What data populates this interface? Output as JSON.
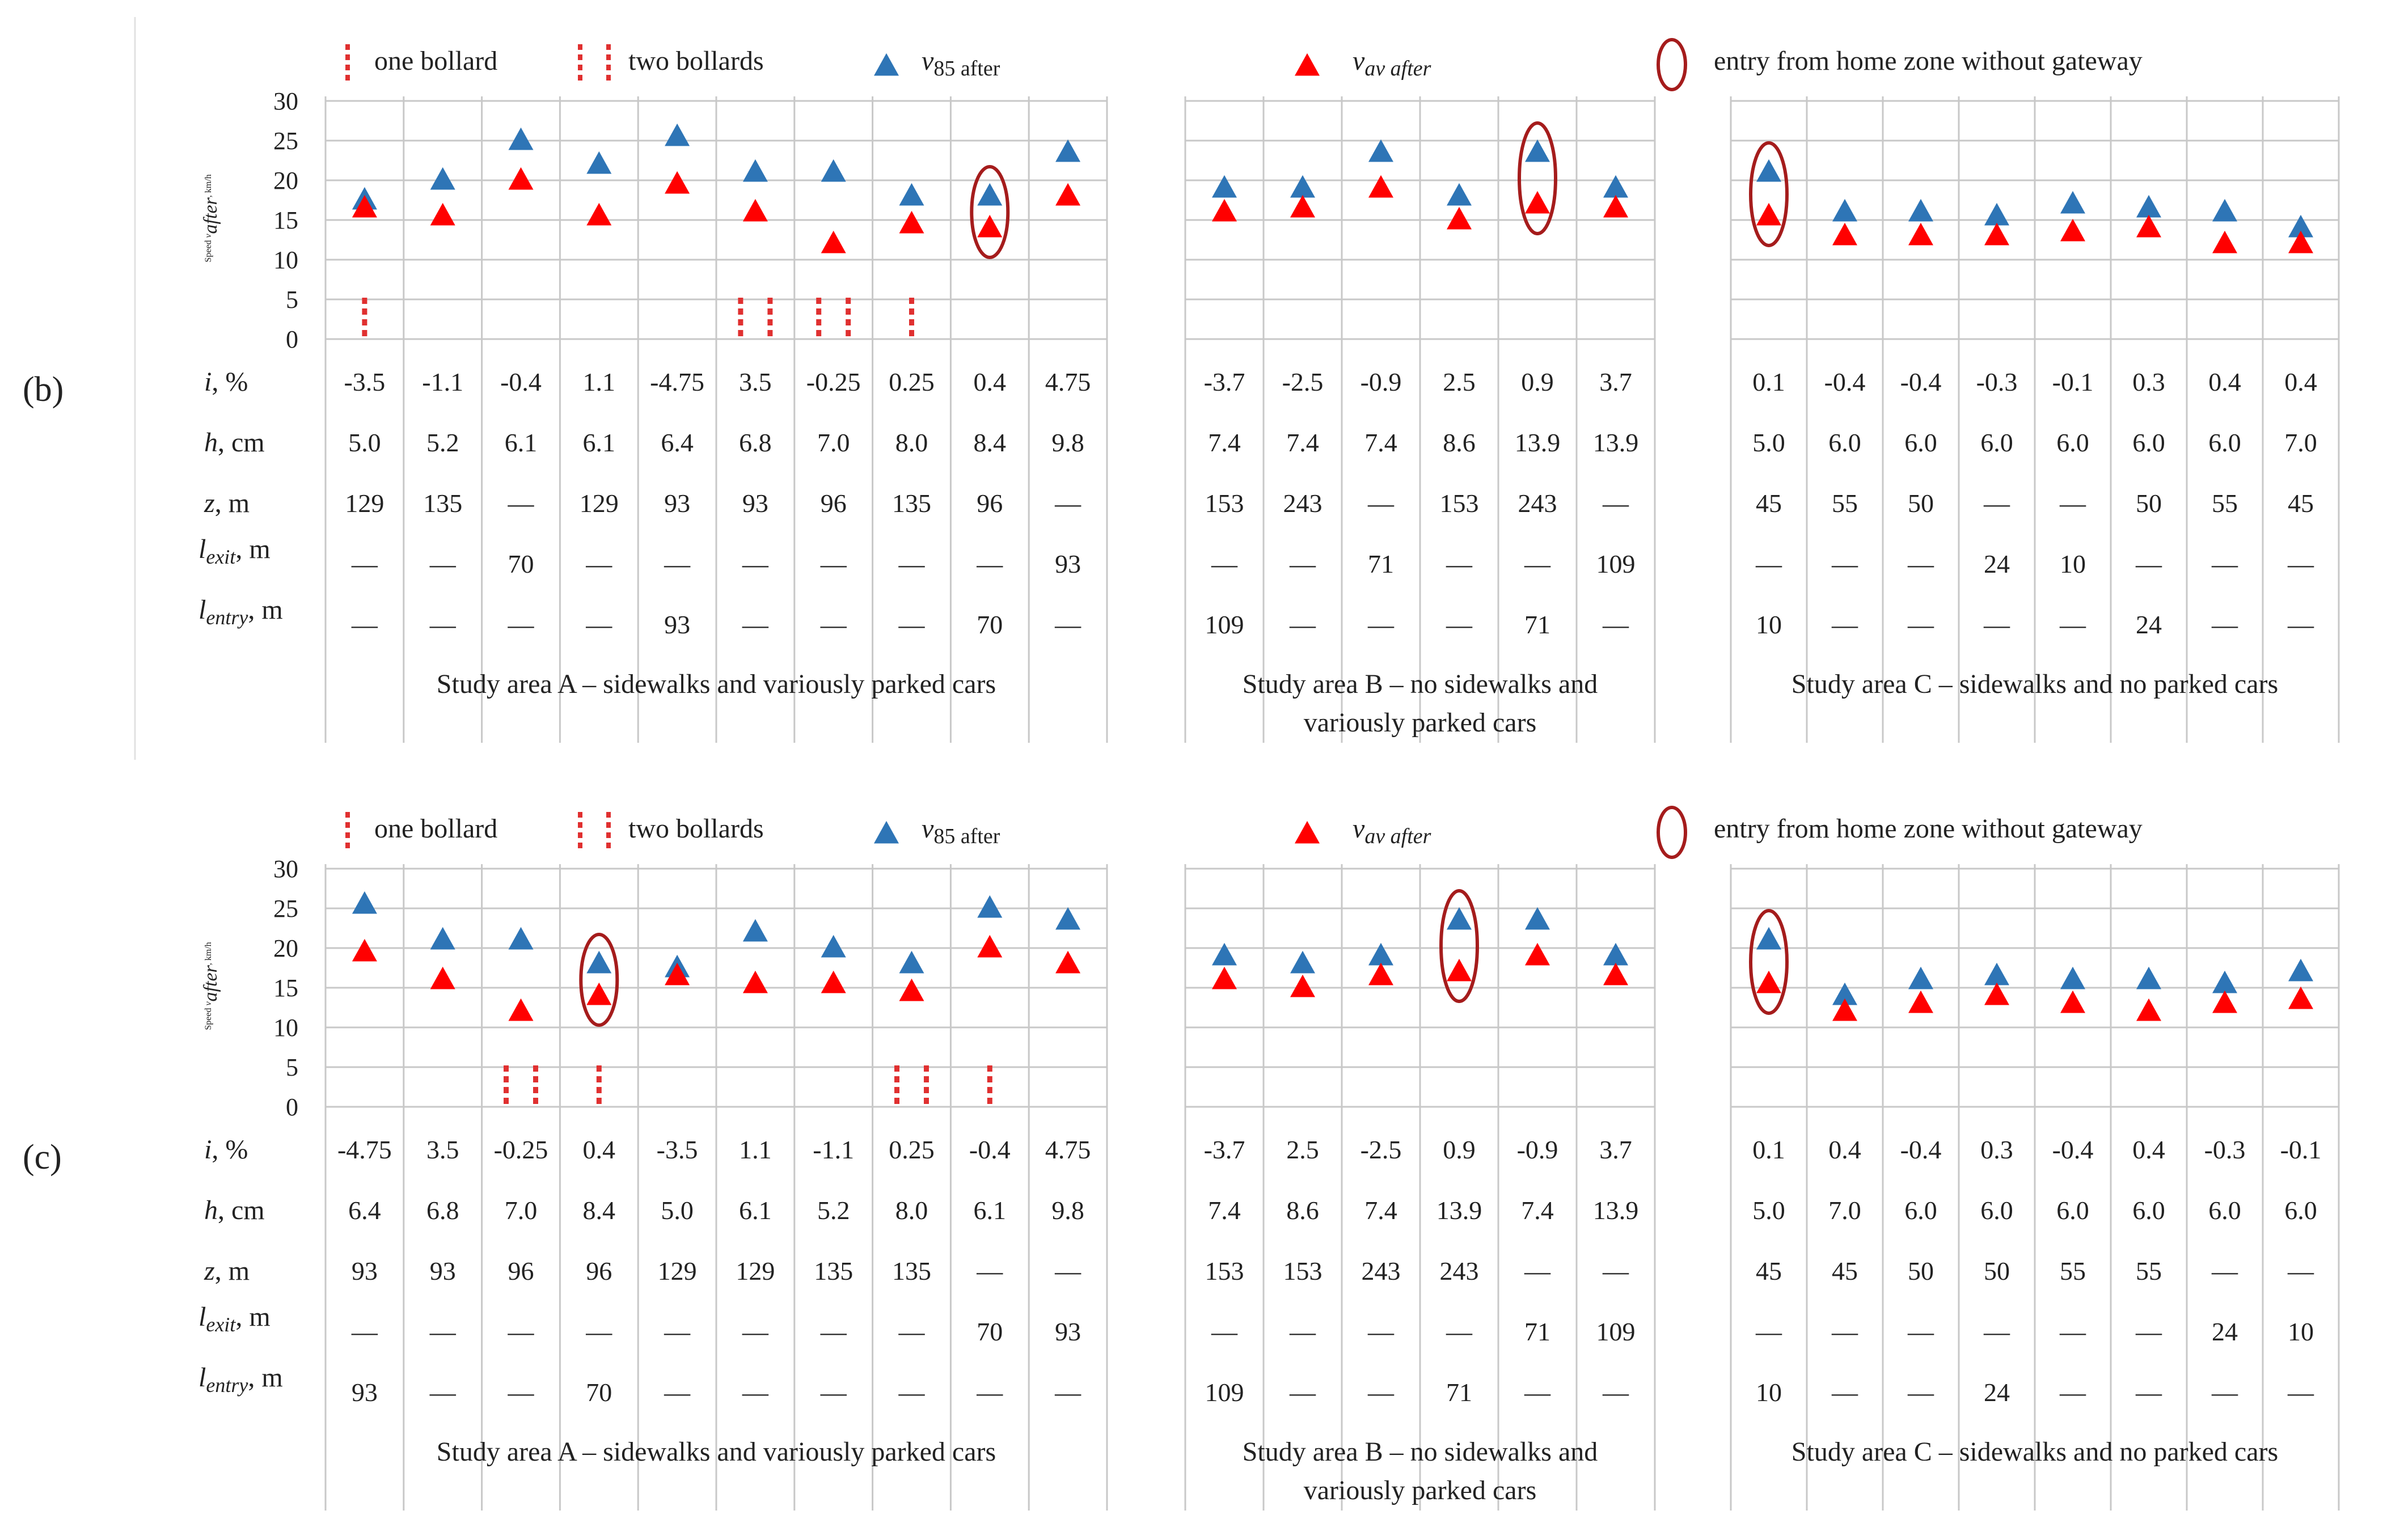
{
  "legend": {
    "one_bollard": "one bollard",
    "two_bollards": "two bollards",
    "v85_symbol": "v",
    "v85_sub": "85 after",
    "vav_symbol": "v",
    "vav_sub": "av after",
    "entry": "entry from home zone without gateway"
  },
  "axis": {
    "ylabel_prefix": "Speed ",
    "ylabel_symbol": "v",
    "ylabel_sub": "after",
    "ylabel_suffix": ", km/h",
    "ticks": [
      "30",
      "25",
      "20",
      "15",
      "10",
      "5",
      "0"
    ]
  },
  "row_labels": {
    "i": "i",
    "i_unit": ", %",
    "h": "h",
    "h_unit": ", cm",
    "z": "z",
    "z_unit": ", m",
    "lexit": "l",
    "lexit_sub": "exit",
    "lexit_unit": ", m",
    "lentry": "l",
    "lentry_sub": "entry",
    "lentry_unit": ", m"
  },
  "colors": {
    "v85": "#2e75b6",
    "vav": "#ff0000",
    "circle": "#a51c1c",
    "bollard": "#e03030"
  },
  "chart_data": [
    {
      "type": "scatter",
      "panel_label": "(b)",
      "ylim": [
        0,
        30
      ],
      "grid": true,
      "series_names": [
        "v85 after",
        "vav after"
      ],
      "areas": [
        {
          "footer": [
            "Study area A – sidewalks and variously parked cars"
          ],
          "v85": [
            17.5,
            20,
            25,
            22,
            25.5,
            21,
            21,
            18,
            18,
            23.5
          ],
          "vav": [
            16.5,
            15.5,
            20,
            15.5,
            19.5,
            16,
            12,
            14.5,
            14,
            18
          ],
          "bollards": [
            1,
            0,
            0,
            0,
            0,
            2,
            2,
            1,
            0,
            0
          ],
          "circles": [
            8
          ],
          "i": [
            "-3.5",
            "-1.1",
            "-0.4",
            "1.1",
            "-4.75",
            "3.5",
            "-0.25",
            "0.25",
            "0.4",
            "4.75"
          ],
          "h": [
            "5.0",
            "5.2",
            "6.1",
            "6.1",
            "6.4",
            "6.8",
            "7.0",
            "8.0",
            "8.4",
            "9.8"
          ],
          "z": [
            "129",
            "135",
            "—",
            "129",
            "93",
            "93",
            "96",
            "135",
            "96",
            "—"
          ],
          "lexit": [
            "—",
            "—",
            "70",
            "—",
            "—",
            "—",
            "—",
            "—",
            "—",
            "93"
          ],
          "lentry": [
            "—",
            "—",
            "—",
            "—",
            "93",
            "—",
            "—",
            "—",
            "70",
            "—"
          ]
        },
        {
          "footer": [
            "Study area B –  no sidewalks and",
            "variously parked cars"
          ],
          "v85": [
            19,
            19,
            23.5,
            18,
            23.5,
            19
          ],
          "vav": [
            16,
            16.5,
            19,
            15,
            17,
            16.5
          ],
          "bollards": [
            0,
            0,
            0,
            0,
            0,
            0
          ],
          "circles": [
            4
          ],
          "i": [
            "-3.7",
            "-2.5",
            "-0.9",
            "2.5",
            "0.9",
            "3.7"
          ],
          "h": [
            "7.4",
            "7.4",
            "7.4",
            "8.6",
            "13.9",
            "13.9"
          ],
          "z": [
            "153",
            "243",
            "—",
            "153",
            "243",
            "—"
          ],
          "lexit": [
            "—",
            "—",
            "71",
            "—",
            "—",
            "109"
          ],
          "lentry": [
            "109",
            "—",
            "—",
            "—",
            "71",
            "—"
          ]
        },
        {
          "footer": [
            "Study area C – sidewalks and no parked cars"
          ],
          "v85": [
            21,
            16,
            16,
            15.5,
            17,
            16.5,
            16,
            14
          ],
          "vav": [
            15.5,
            13,
            13,
            13,
            13.5,
            14,
            12,
            12
          ],
          "bollards": [
            0,
            0,
            0,
            0,
            0,
            0,
            0,
            0
          ],
          "circles": [
            0
          ],
          "i": [
            "0.1",
            "-0.4",
            "-0.4",
            "-0.3",
            "-0.1",
            "0.3",
            "0.4",
            "0.4"
          ],
          "h": [
            "5.0",
            "6.0",
            "6.0",
            "6.0",
            "6.0",
            "6.0",
            "6.0",
            "7.0"
          ],
          "z": [
            "45",
            "55",
            "50",
            "—",
            "—",
            "50",
            "55",
            "45"
          ],
          "lexit": [
            "—",
            "—",
            "—",
            "24",
            "10",
            "—",
            "—",
            "—"
          ],
          "lentry": [
            "10",
            "—",
            "—",
            "—",
            "—",
            "24",
            "—",
            "—"
          ]
        }
      ]
    },
    {
      "type": "scatter",
      "panel_label": "(c)",
      "ylim": [
        0,
        30
      ],
      "grid": true,
      "series_names": [
        "v85 after",
        "vav after"
      ],
      "areas": [
        {
          "footer": [
            "Study area A – sidewalks and variously parked cars"
          ],
          "v85": [
            25.5,
            21,
            21,
            18,
            17.5,
            22,
            20,
            18,
            25,
            23.5
          ],
          "vav": [
            19.5,
            16,
            12,
            14,
            16.5,
            15.5,
            15.5,
            14.5,
            20,
            18
          ],
          "bollards": [
            0,
            0,
            2,
            1,
            0,
            0,
            0,
            2,
            1,
            0
          ],
          "circles": [
            3
          ],
          "i": [
            "-4.75",
            "3.5",
            "-0.25",
            "0.4",
            "-3.5",
            "1.1",
            "-1.1",
            "0.25",
            "-0.4",
            "4.75"
          ],
          "h": [
            "6.4",
            "6.8",
            "7.0",
            "8.4",
            "5.0",
            "6.1",
            "5.2",
            "8.0",
            "6.1",
            "9.8"
          ],
          "z": [
            "93",
            "93",
            "96",
            "96",
            "129",
            "129",
            "135",
            "135",
            "—",
            "—"
          ],
          "lexit": [
            "—",
            "—",
            "—",
            "—",
            "—",
            "—",
            "—",
            "—",
            "70",
            "93"
          ],
          "lentry": [
            "93",
            "—",
            "—",
            "70",
            "—",
            "—",
            "—",
            "—",
            "—",
            "—"
          ]
        },
        {
          "footer": [
            "Study area B –  no sidewalks and",
            "variously parked cars"
          ],
          "v85": [
            19,
            18,
            19,
            23.5,
            23.5,
            19
          ],
          "vav": [
            16,
            15,
            16.5,
            17,
            19,
            16.5
          ],
          "bollards": [
            0,
            0,
            0,
            0,
            0,
            0
          ],
          "circles": [
            3
          ],
          "i": [
            "-3.7",
            "2.5",
            "-2.5",
            "0.9",
            "-0.9",
            "3.7"
          ],
          "h": [
            "7.4",
            "8.6",
            "7.4",
            "13.9",
            "7.4",
            "13.9"
          ],
          "z": [
            "153",
            "153",
            "243",
            "243",
            "—",
            "—"
          ],
          "lexit": [
            "—",
            "—",
            "—",
            "—",
            "71",
            "109"
          ],
          "lentry": [
            "109",
            "—",
            "—",
            "71",
            "—",
            "—"
          ]
        },
        {
          "footer": [
            "Study area C – sidewalks and no parked cars"
          ],
          "v85": [
            21,
            14,
            16,
            16.5,
            16,
            16,
            15.5,
            17
          ],
          "vav": [
            15.5,
            12,
            13,
            14,
            13,
            12,
            13,
            13.5
          ],
          "bollards": [
            0,
            0,
            0,
            0,
            0,
            0,
            0,
            0
          ],
          "circles": [
            0
          ],
          "i": [
            "0.1",
            "0.4",
            "-0.4",
            "0.3",
            "-0.4",
            "0.4",
            "-0.3",
            "-0.1"
          ],
          "h": [
            "5.0",
            "7.0",
            "6.0",
            "6.0",
            "6.0",
            "6.0",
            "6.0",
            "6.0"
          ],
          "z": [
            "45",
            "45",
            "50",
            "50",
            "55",
            "55",
            "—",
            "—"
          ],
          "lexit": [
            "—",
            "—",
            "—",
            "—",
            "—",
            "—",
            "24",
            "10"
          ],
          "lentry": [
            "10",
            "—",
            "—",
            "24",
            "—",
            "—",
            "—",
            "—"
          ]
        }
      ]
    }
  ]
}
